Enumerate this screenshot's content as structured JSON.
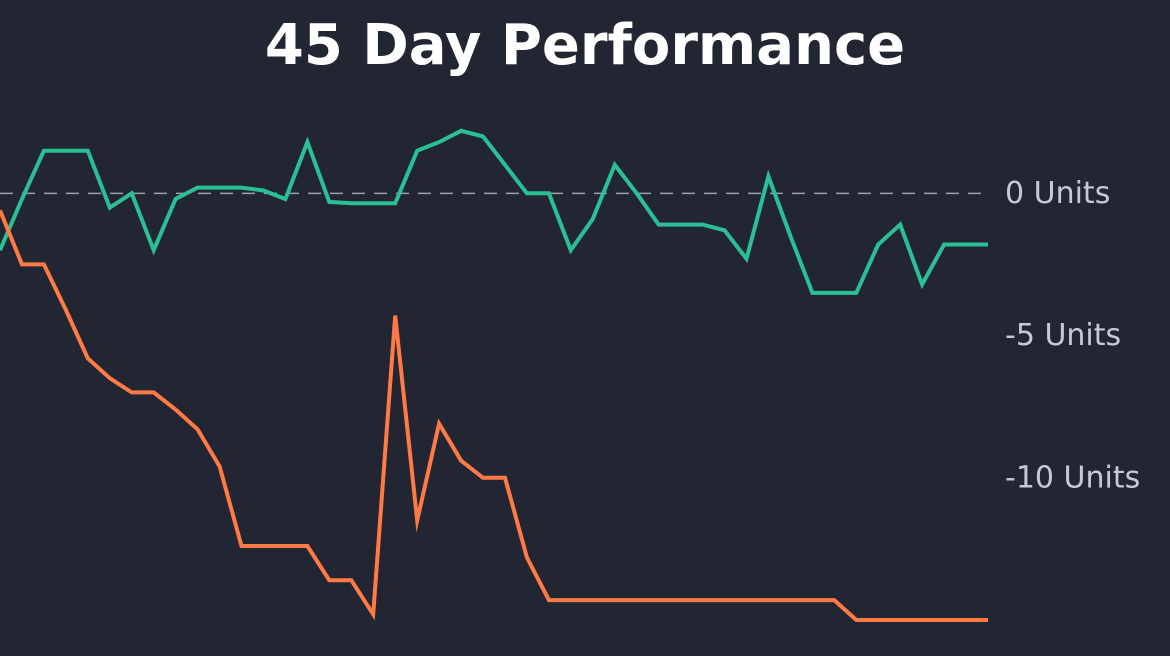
{
  "chart_data": {
    "type": "line",
    "title": "45 Day Performance",
    "xlabel": "",
    "ylabel": "",
    "x": [
      1,
      2,
      3,
      4,
      5,
      6,
      7,
      8,
      9,
      10,
      11,
      12,
      13,
      14,
      15,
      16,
      17,
      18,
      19,
      20,
      21,
      22,
      23,
      24,
      25,
      26,
      27,
      28,
      29,
      30,
      31,
      32,
      33,
      34,
      35,
      36,
      37,
      38,
      39,
      40,
      41,
      42,
      43,
      44,
      45,
      46
    ],
    "xlim": [
      1,
      46
    ],
    "ylim": [
      -15,
      3
    ],
    "y_ticks": [
      0,
      -5,
      -10
    ],
    "y_tick_labels": [
      "0 Units",
      "-5 Units",
      "-10 Units"
    ],
    "zero_reference_line": true,
    "grid": false,
    "legend": "none",
    "series": [
      {
        "color": "#2bbf95",
        "values": [
          -2,
          -0.2,
          1.5,
          1.5,
          1.5,
          -0.5,
          0,
          -2,
          -0.2,
          0.2,
          0.2,
          0.2,
          0.1,
          -0.2,
          1.8,
          -0.3,
          -0.35,
          -0.35,
          -0.35,
          1.5,
          1.8,
          2.2,
          2.0,
          1,
          0,
          0,
          -2,
          -0.9,
          1,
          0,
          -1.1,
          -1.1,
          -1.1,
          -1.3,
          -2.3,
          0.6,
          -1.5,
          -3.5,
          -3.5,
          -3.5,
          -1.8,
          -1.1,
          -3.2,
          -1.8,
          -1.8,
          -1.8
        ]
      },
      {
        "color": "#ff7a45",
        "values": [
          -0.6,
          -2.5,
          -2.5,
          -4.1,
          -5.8,
          -6.5,
          -7.0,
          -7.0,
          -7.6,
          -8.3,
          -9.6,
          -12.4,
          -12.4,
          -12.4,
          -12.4,
          -13.6,
          -13.6,
          -14.8,
          -4.3,
          -11.5,
          -8.1,
          -9.4,
          -10.0,
          -10.0,
          -12.8,
          -14.3,
          -14.3,
          -14.3,
          -14.3,
          -14.3,
          -14.3,
          -14.3,
          -14.3,
          -14.3,
          -14.3,
          -14.3,
          -14.3,
          -14.3,
          -14.3,
          -15.0,
          -15.0,
          -15.0,
          -15.0,
          -15.0,
          -15.0,
          -15.0
        ]
      }
    ]
  }
}
